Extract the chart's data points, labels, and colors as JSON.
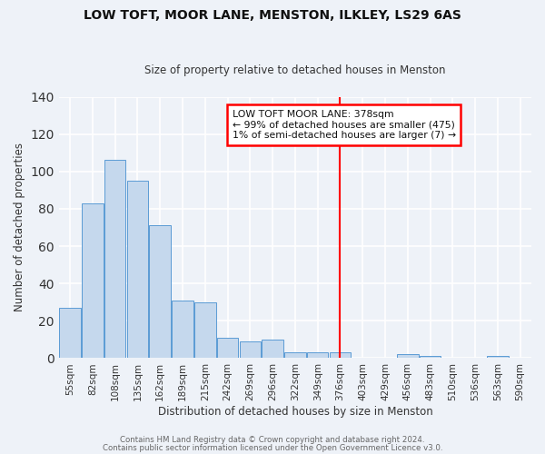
{
  "title": "LOW TOFT, MOOR LANE, MENSTON, ILKLEY, LS29 6AS",
  "subtitle": "Size of property relative to detached houses in Menston",
  "xlabel": "Distribution of detached houses by size in Menston",
  "ylabel": "Number of detached properties",
  "bar_labels": [
    "55sqm",
    "82sqm",
    "108sqm",
    "135sqm",
    "162sqm",
    "189sqm",
    "215sqm",
    "242sqm",
    "269sqm",
    "296sqm",
    "322sqm",
    "349sqm",
    "376sqm",
    "403sqm",
    "429sqm",
    "456sqm",
    "483sqm",
    "510sqm",
    "536sqm",
    "563sqm",
    "590sqm"
  ],
  "bar_values": [
    27,
    83,
    106,
    95,
    71,
    31,
    30,
    11,
    9,
    10,
    3,
    3,
    3,
    0,
    0,
    2,
    1,
    0,
    0,
    1,
    0
  ],
  "bar_color": "#c5d8ed",
  "bar_edge_color": "#5b9bd5",
  "background_color": "#eef2f8",
  "grid_color": "#ffffff",
  "vline_x_index": 12,
  "vline_color": "red",
  "annotation_title": "LOW TOFT MOOR LANE: 378sqm",
  "annotation_line1": "← 99% of detached houses are smaller (475)",
  "annotation_line2": "1% of semi-detached houses are larger (7) →",
  "annotation_box_color": "#ffffff",
  "annotation_box_edge": "red",
  "ylim": [
    0,
    140
  ],
  "yticks": [
    0,
    20,
    40,
    60,
    80,
    100,
    120,
    140
  ],
  "footer1": "Contains HM Land Registry data © Crown copyright and database right 2024.",
  "footer2": "Contains public sector information licensed under the Open Government Licence v3.0."
}
